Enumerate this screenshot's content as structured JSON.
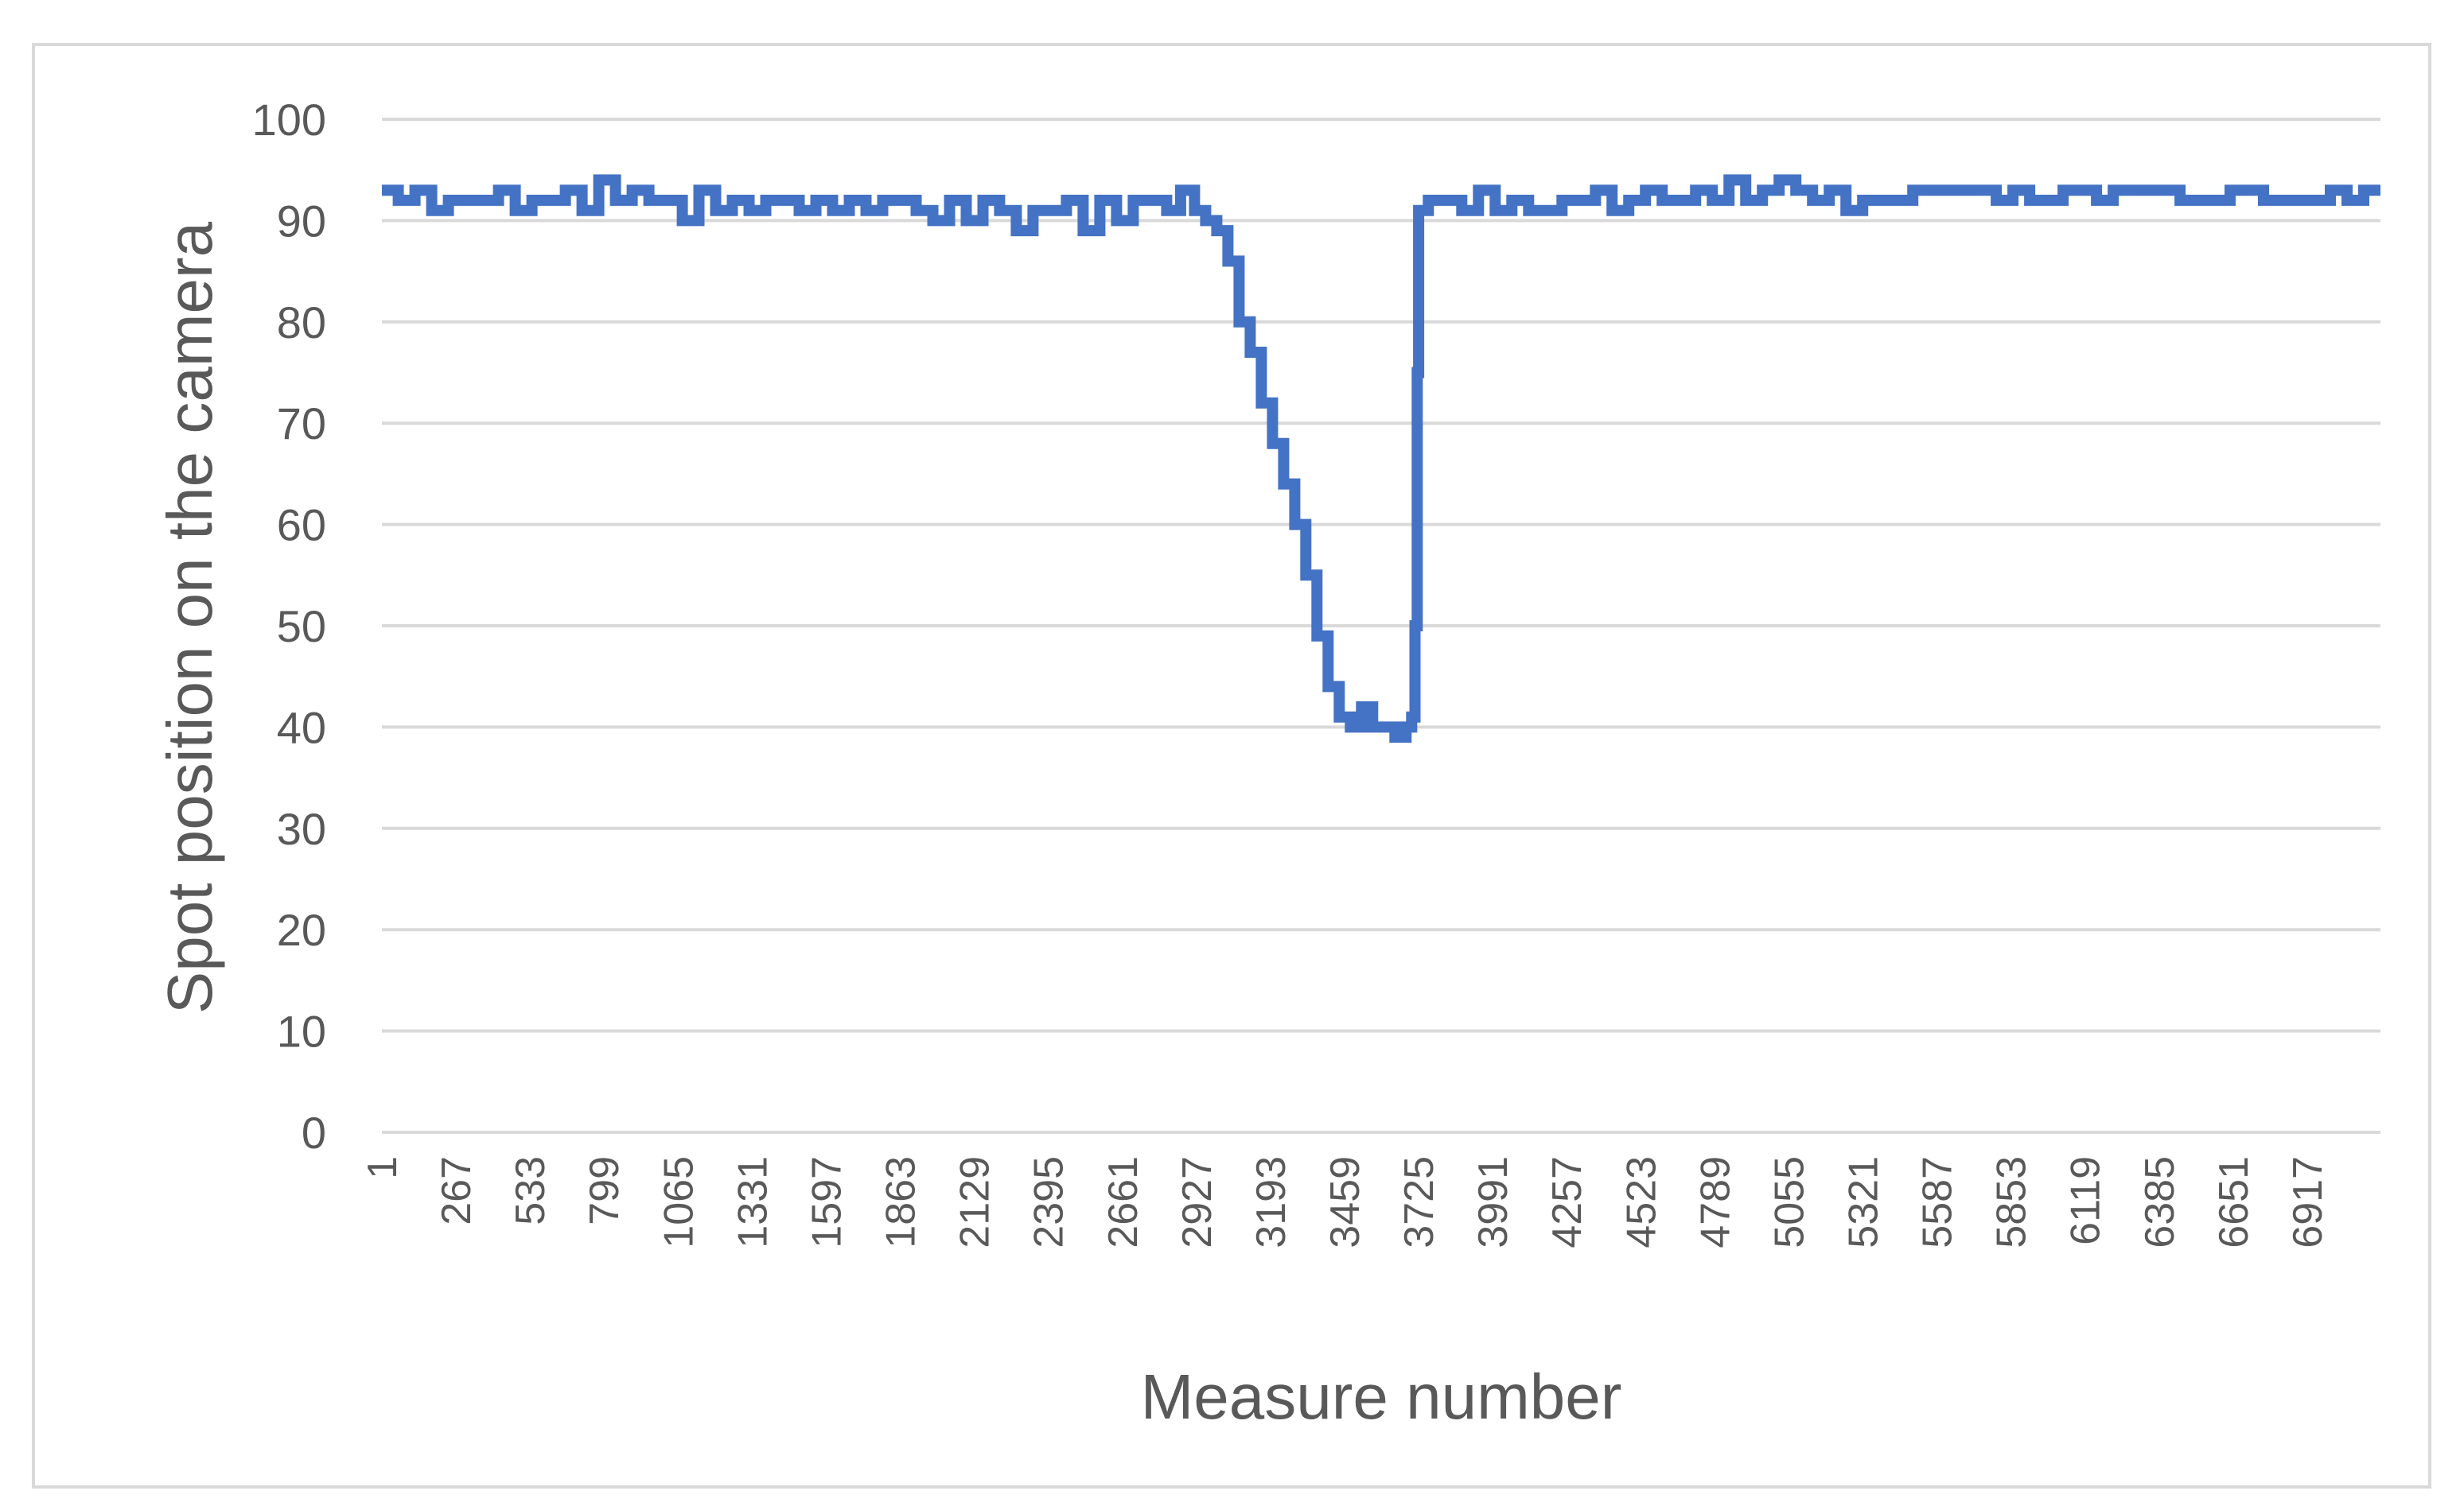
{
  "chart_data": {
    "type": "line",
    "title": "",
    "xlabel": "Measure number",
    "ylabel": "Spot position on the camera",
    "x_tick_labels": [
      "1",
      "267",
      "533",
      "799",
      "1065",
      "1331",
      "1597",
      "1863",
      "2129",
      "2395",
      "2661",
      "2927",
      "3193",
      "3459",
      "3725",
      "3991",
      "4257",
      "4523",
      "4789",
      "5055",
      "5321",
      "5587",
      "5853",
      "6119",
      "6385",
      "6651",
      "6917"
    ],
    "y_ticks": [
      0,
      10,
      20,
      30,
      40,
      50,
      60,
      70,
      80,
      90,
      100
    ],
    "xlim": [
      1,
      7180
    ],
    "ylim": [
      0,
      100
    ],
    "grid": true,
    "legend": "none",
    "series_color": "#4472c4",
    "series": [
      {
        "x": [
          1,
          60,
          120,
          180,
          240,
          300,
          360,
          420,
          480,
          540,
          600,
          660,
          720,
          780,
          840,
          900,
          960,
          1020,
          1080,
          1140,
          1200,
          1260,
          1320,
          1380,
          1440,
          1500,
          1560,
          1620,
          1680,
          1740,
          1800,
          1860,
          1920,
          1980,
          2040,
          2100,
          2160,
          2220,
          2280,
          2340,
          2400,
          2460,
          2520,
          2580,
          2640,
          2700,
          2760,
          2820,
          2870,
          2920,
          2960,
          3000,
          3040,
          3080,
          3120,
          3160,
          3200,
          3240,
          3280,
          3320,
          3360,
          3400,
          3440,
          3480,
          3520,
          3560,
          3600,
          3640,
          3680,
          3700,
          3712,
          3720,
          3725,
          3760,
          3820,
          3880,
          3940,
          4000,
          4060,
          4120,
          4180,
          4240,
          4300,
          4360,
          4420,
          4480,
          4540,
          4600,
          4660,
          4720,
          4780,
          4840,
          4900,
          4960,
          5020,
          5080,
          5140,
          5200,
          5260,
          5320,
          5380,
          5440,
          5500,
          5560,
          5620,
          5680,
          5740,
          5800,
          5860,
          5920,
          5980,
          6040,
          6100,
          6160,
          6220,
          6280,
          6340,
          6400,
          6460,
          6520,
          6580,
          6640,
          6700,
          6760,
          6820,
          6880,
          6940,
          7000,
          7060,
          7120,
          7180
        ],
        "values": [
          93,
          92,
          93,
          91,
          92,
          92,
          92,
          93,
          91,
          92,
          92,
          93,
          91,
          94,
          92,
          93,
          92,
          92,
          90,
          93,
          91,
          92,
          91,
          92,
          92,
          91,
          92,
          91,
          92,
          91,
          92,
          92,
          91,
          90,
          92,
          90,
          92,
          91,
          89,
          91,
          91,
          92,
          89,
          92,
          90,
          92,
          92,
          91,
          93,
          91,
          90,
          89,
          86,
          80,
          77,
          72,
          68,
          64,
          60,
          55,
          49,
          44,
          41,
          40,
          42,
          40,
          40,
          39,
          40,
          41,
          50,
          75,
          91,
          92,
          92,
          91,
          93,
          91,
          92,
          91,
          91,
          92,
          92,
          93,
          91,
          92,
          93,
          92,
          92,
          93,
          92,
          94,
          92,
          93,
          94,
          93,
          92,
          93,
          91,
          92,
          92,
          92,
          93,
          93,
          93,
          93,
          93,
          92,
          93,
          92,
          92,
          93,
          93,
          92,
          93,
          93,
          93,
          93,
          92,
          92,
          92,
          93,
          93,
          92,
          92,
          92,
          92,
          93,
          92,
          93,
          93
        ]
      }
    ]
  }
}
